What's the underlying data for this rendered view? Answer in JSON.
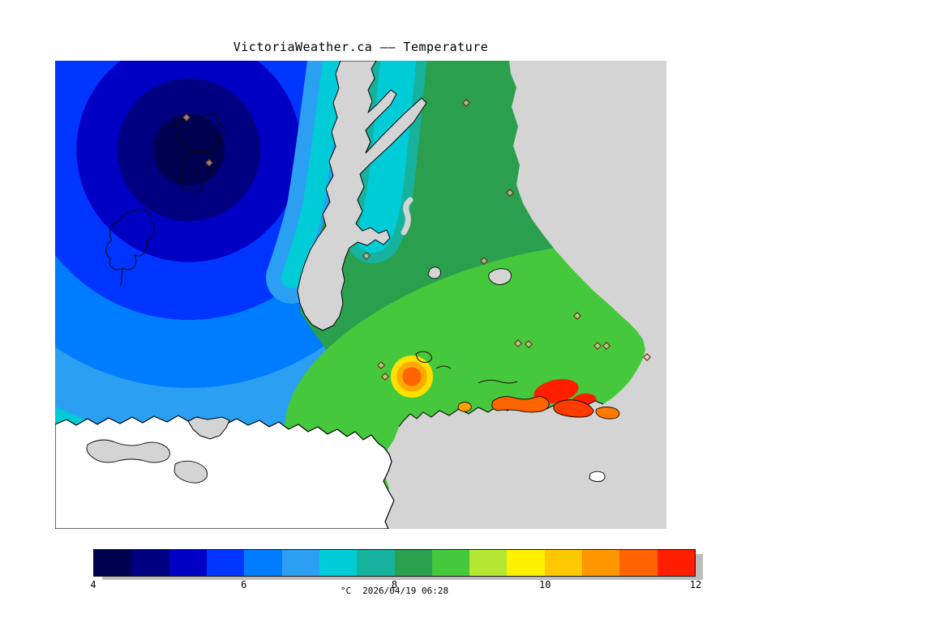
{
  "title": "VictoriaWeather.ca —— Temperature",
  "map": {
    "background_color": "#d4d4d4",
    "land_color": "#ffffff",
    "coastline_color": "#000000",
    "station_marker_color": "#7a2800"
  },
  "colorbar": {
    "unit": "°C",
    "timestamp": "2026/04/19 06:28",
    "min": 4,
    "max": 12,
    "tick_labels": [
      "4",
      "6",
      "8",
      "10",
      "12"
    ],
    "colors": [
      "#000050",
      "#000080",
      "#0000c4",
      "#0034ff",
      "#007cff",
      "#2b9ff2",
      "#00ccd8",
      "#16b29e",
      "#2aa04e",
      "#46c83c",
      "#b4e632",
      "#fff000",
      "#ffc800",
      "#ff9600",
      "#ff6400",
      "#ff1e00"
    ]
  },
  "chart_data": {
    "type": "heatmap",
    "title": "VictoriaWeather.ca —— Temperature",
    "variable": "Temperature",
    "unit": "°C",
    "timestamp": "2026/04/19 06:28",
    "colorbar": {
      "min": 4,
      "max": 12,
      "step": 0.5,
      "ticks": [
        4,
        6,
        8,
        10,
        12
      ]
    },
    "legend_position": "bottom",
    "features": [
      {
        "name": "cold core",
        "location": "northwest offshore",
        "approx_temp_c": 4
      },
      {
        "name": "cool gradient rings",
        "location": "western ocean",
        "approx_temp_c": "4.5-7"
      },
      {
        "name": "mild zone",
        "location": "northeast mainland",
        "approx_temp_c": 8
      },
      {
        "name": "warm band",
        "location": "south-central lowlands",
        "approx_temp_c": "10-11"
      },
      {
        "name": "hot spots",
        "location": "southeast valleys and islands",
        "approx_temp_c": 12
      }
    ]
  }
}
